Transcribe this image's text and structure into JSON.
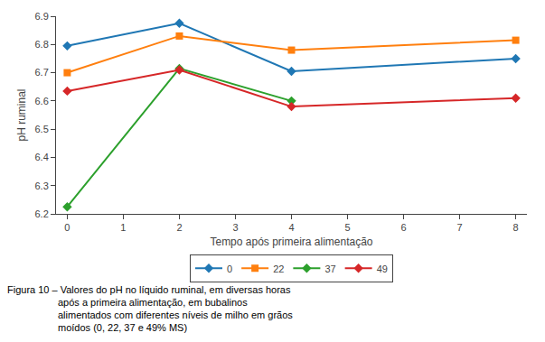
{
  "chart_data": {
    "type": "line",
    "x": [
      0,
      2,
      4,
      8
    ],
    "series": [
      {
        "name": "0",
        "values": [
          6.795,
          6.875,
          6.705,
          6.75
        ],
        "marker": "diamond"
      },
      {
        "name": "22",
        "values": [
          6.7,
          6.83,
          6.78,
          6.815
        ],
        "marker": "square"
      },
      {
        "name": "37",
        "values": [
          6.225,
          6.715,
          6.6,
          null
        ],
        "marker": "diamond"
      },
      {
        "name": "49",
        "values": [
          6.635,
          6.71,
          6.58,
          6.61
        ],
        "marker": "diamond"
      }
    ],
    "xlabel": "Tempo após primeira alimentação",
    "ylabel": "pH ruminal",
    "xlim": [
      -0.2,
      8.2
    ],
    "xticks": [
      0,
      1,
      2,
      3,
      4,
      5,
      6,
      7,
      8
    ],
    "ylim": [
      6.2,
      6.9
    ],
    "yticks": [
      6.2,
      6.3,
      6.4,
      6.5,
      6.6,
      6.7,
      6.8,
      6.9
    ],
    "grid": false,
    "legend": "bottom",
    "annotations": [
      "Figura 10 – Valores do pH no líquido ruminal, em diversas horas",
      "após a primeira alimentação, em bubalinos",
      "alimentados com diferentes níveis de milho em grãos",
      "moídos (0, 22, 37 e 49% MS)"
    ]
  }
}
